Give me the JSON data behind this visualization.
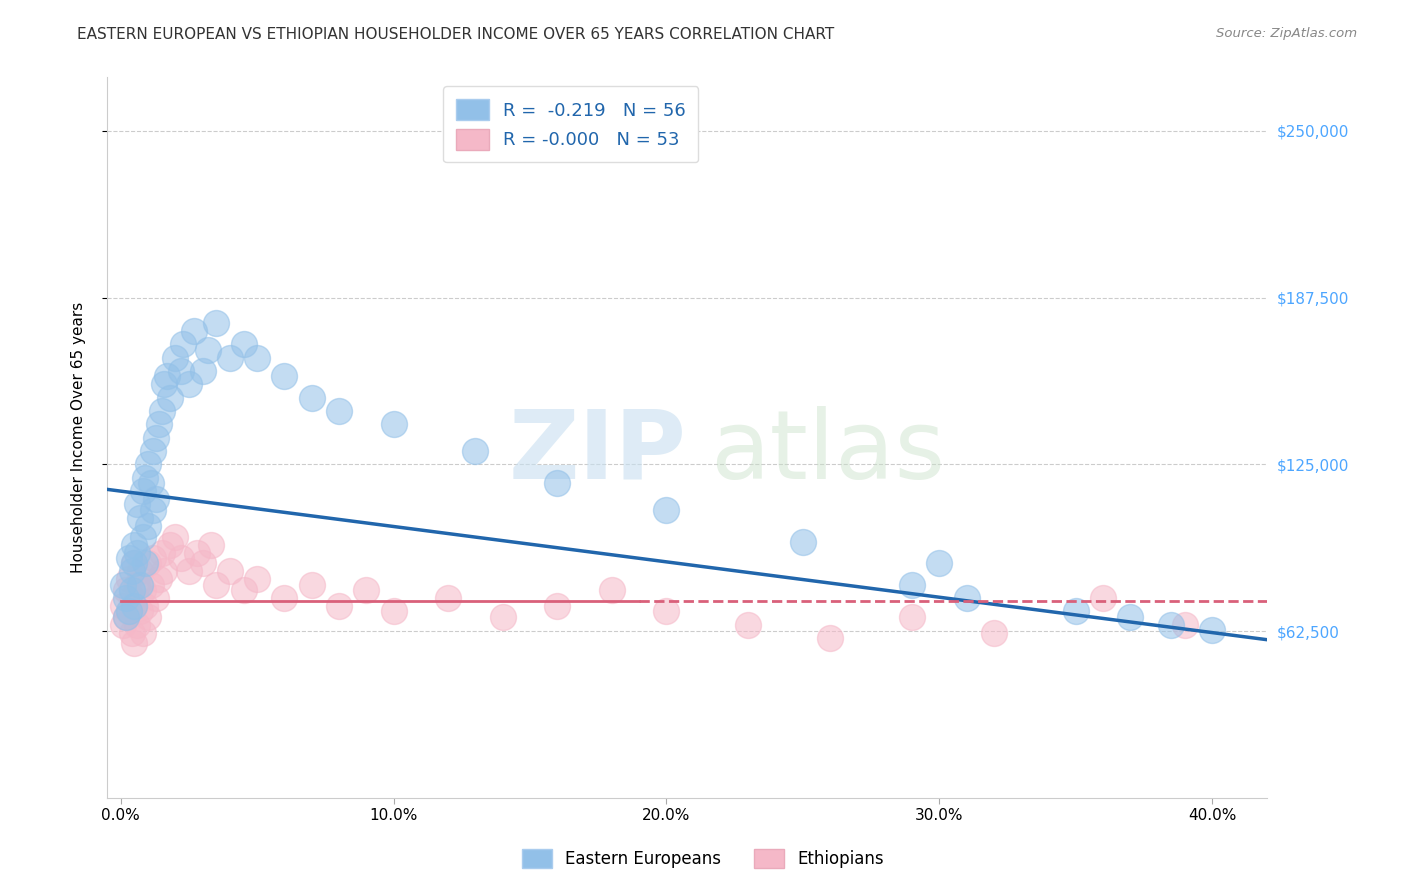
{
  "title": "EASTERN EUROPEAN VS ETHIOPIAN HOUSEHOLDER INCOME OVER 65 YEARS CORRELATION CHART",
  "source": "Source: ZipAtlas.com",
  "xlabel_ticks": [
    "0.0%",
    "10.0%",
    "20.0%",
    "30.0%",
    "40.0%"
  ],
  "xlabel_tick_vals": [
    0.0,
    0.1,
    0.2,
    0.3,
    0.4
  ],
  "ylabel": "Householder Income Over 65 years",
  "ylabel_ticks": [
    "$62,500",
    "$125,000",
    "$187,500",
    "$250,000"
  ],
  "ylabel_tick_vals": [
    62500,
    125000,
    187500,
    250000
  ],
  "ylim": [
    0,
    270000
  ],
  "xlim": [
    -0.005,
    0.42
  ],
  "legend_r_blue": "-0.219",
  "legend_n_blue": "56",
  "legend_r_pink": "-0.000",
  "legend_n_pink": "53",
  "blue_color": "#92c0e8",
  "pink_color": "#f5b8c8",
  "blue_line_color": "#2166ac",
  "pink_line_color": "#d9607a",
  "blue_line_y0": 115000,
  "blue_line_y1": 62000,
  "pink_line_y": 74000,
  "eastern_europeans_x": [
    0.001,
    0.002,
    0.002,
    0.003,
    0.003,
    0.004,
    0.004,
    0.005,
    0.005,
    0.005,
    0.006,
    0.006,
    0.007,
    0.007,
    0.008,
    0.008,
    0.009,
    0.009,
    0.01,
    0.01,
    0.011,
    0.012,
    0.012,
    0.013,
    0.013,
    0.014,
    0.015,
    0.016,
    0.017,
    0.018,
    0.02,
    0.022,
    0.023,
    0.025,
    0.027,
    0.03,
    0.032,
    0.035,
    0.04,
    0.045,
    0.05,
    0.06,
    0.07,
    0.08,
    0.1,
    0.13,
    0.16,
    0.2,
    0.25,
    0.29,
    0.3,
    0.31,
    0.35,
    0.37,
    0.385,
    0.4
  ],
  "eastern_europeans_y": [
    80000,
    68000,
    75000,
    90000,
    70000,
    85000,
    78000,
    95000,
    88000,
    72000,
    110000,
    92000,
    105000,
    80000,
    115000,
    98000,
    120000,
    88000,
    125000,
    102000,
    118000,
    130000,
    108000,
    135000,
    112000,
    140000,
    145000,
    155000,
    158000,
    150000,
    165000,
    160000,
    170000,
    155000,
    175000,
    160000,
    168000,
    178000,
    165000,
    170000,
    165000,
    158000,
    150000,
    145000,
    140000,
    130000,
    118000,
    108000,
    96000,
    80000,
    88000,
    75000,
    70000,
    68000,
    65000,
    63000
  ],
  "ethiopians_x": [
    0.001,
    0.001,
    0.002,
    0.002,
    0.003,
    0.003,
    0.004,
    0.004,
    0.005,
    0.005,
    0.005,
    0.006,
    0.006,
    0.007,
    0.007,
    0.008,
    0.008,
    0.009,
    0.01,
    0.01,
    0.011,
    0.012,
    0.013,
    0.014,
    0.015,
    0.016,
    0.018,
    0.02,
    0.022,
    0.025,
    0.028,
    0.03,
    0.033,
    0.035,
    0.04,
    0.045,
    0.05,
    0.06,
    0.07,
    0.08,
    0.09,
    0.1,
    0.12,
    0.14,
    0.16,
    0.18,
    0.2,
    0.23,
    0.26,
    0.29,
    0.32,
    0.36,
    0.39
  ],
  "ethiopians_y": [
    72000,
    65000,
    78000,
    68000,
    82000,
    70000,
    75000,
    62000,
    88000,
    72000,
    58000,
    80000,
    65000,
    85000,
    70000,
    78000,
    62000,
    72000,
    88000,
    68000,
    80000,
    90000,
    75000,
    82000,
    92000,
    85000,
    95000,
    98000,
    90000,
    85000,
    92000,
    88000,
    95000,
    80000,
    85000,
    78000,
    82000,
    75000,
    80000,
    72000,
    78000,
    70000,
    75000,
    68000,
    72000,
    78000,
    70000,
    65000,
    60000,
    68000,
    62000,
    75000,
    65000
  ]
}
